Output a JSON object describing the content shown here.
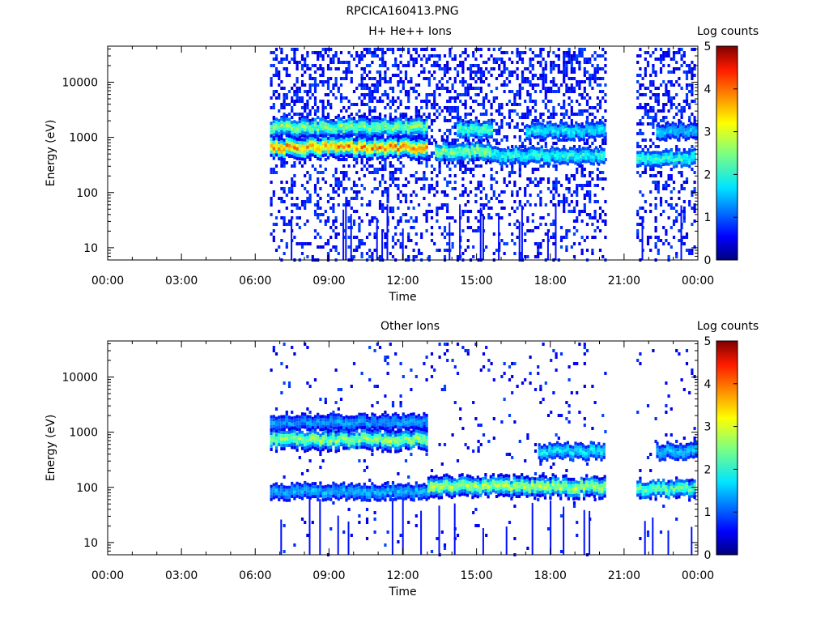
{
  "figure_title": "RPCICA160413.PNG",
  "chart_data": [
    {
      "type": "heatmap",
      "title": "H+ He++ Ions",
      "xlabel": "Time",
      "ylabel": "Energy (eV)",
      "x_ticks": [
        "00:00",
        "03:00",
        "06:00",
        "09:00",
        "12:00",
        "15:00",
        "18:00",
        "21:00",
        "00:00"
      ],
      "x_range_hours": [
        0,
        24
      ],
      "y_scale": "log",
      "y_ticks": [
        10,
        100,
        1000,
        10000
      ],
      "y_tick_labels": [
        "10",
        "100",
        "1000",
        "10000"
      ],
      "y_range": [
        6,
        45000
      ],
      "colorbar": {
        "label": "Log counts",
        "range": [
          0,
          5
        ],
        "ticks": [
          "0",
          "1",
          "2",
          "3",
          "4",
          "5"
        ]
      },
      "data_coverage_hours": [
        [
          6.6,
          20.2
        ],
        [
          21.5,
          23.9
        ]
      ],
      "bands": [
        {
          "t": [
            6.6,
            13.0
          ],
          "energy_center": 1600,
          "log_counts": 2.5
        },
        {
          "t": [
            6.6,
            13.0
          ],
          "energy_center": 700,
          "log_counts": 3.6
        },
        {
          "t": [
            14.2,
            15.6
          ],
          "energy_center": 1500,
          "log_counts": 2.3
        },
        {
          "t": [
            13.3,
            15.6
          ],
          "energy_center": 600,
          "log_counts": 2.5
        },
        {
          "t": [
            15.6,
            20.2
          ],
          "energy_center": 500,
          "log_counts": 2.0
        },
        {
          "t": [
            17.0,
            20.2
          ],
          "energy_center": 1400,
          "log_counts": 1.8
        },
        {
          "t": [
            21.5,
            23.9
          ],
          "energy_center": 450,
          "log_counts": 2.1
        },
        {
          "t": [
            22.3,
            23.9
          ],
          "energy_center": 1400,
          "log_counts": 1.6
        }
      ]
    },
    {
      "type": "heatmap",
      "title": "Other Ions",
      "xlabel": "Time",
      "ylabel": "Energy (eV)",
      "x_ticks": [
        "00:00",
        "03:00",
        "06:00",
        "09:00",
        "12:00",
        "15:00",
        "18:00",
        "21:00",
        "00:00"
      ],
      "x_range_hours": [
        0,
        24
      ],
      "y_scale": "log",
      "y_ticks": [
        10,
        100,
        1000,
        10000
      ],
      "y_tick_labels": [
        "10",
        "100",
        "1000",
        "10000"
      ],
      "y_range": [
        6,
        45000
      ],
      "colorbar": {
        "label": "Log counts",
        "range": [
          0,
          5
        ],
        "ticks": [
          "0",
          "1",
          "2",
          "3",
          "4",
          "5"
        ]
      },
      "data_coverage_hours": [
        [
          6.6,
          20.2
        ],
        [
          21.5,
          23.9
        ]
      ],
      "bands": [
        {
          "t": [
            6.6,
            13.0
          ],
          "energy_center": 1600,
          "log_counts": 1.4
        },
        {
          "t": [
            6.6,
            13.0
          ],
          "energy_center": 780,
          "log_counts": 2.6
        },
        {
          "t": [
            6.6,
            13.0
          ],
          "energy_center": 90,
          "log_counts": 1.5
        },
        {
          "t": [
            13.0,
            20.2
          ],
          "energy_center": 110,
          "log_counts": 2.7
        },
        {
          "t": [
            17.5,
            20.2
          ],
          "energy_center": 480,
          "log_counts": 1.8
        },
        {
          "t": [
            21.5,
            23.9
          ],
          "energy_center": 100,
          "log_counts": 2.3
        },
        {
          "t": [
            22.3,
            23.9
          ],
          "energy_center": 480,
          "log_counts": 1.6
        }
      ]
    }
  ]
}
